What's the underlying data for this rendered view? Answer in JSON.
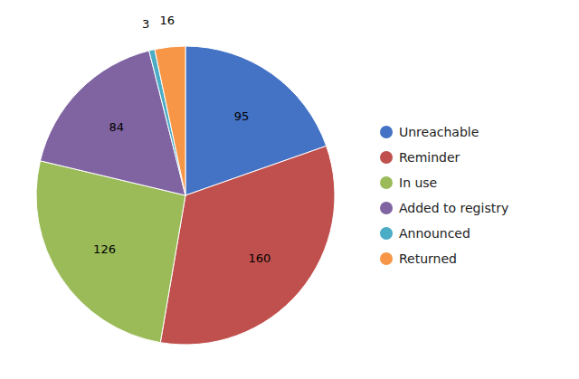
{
  "chart_data": {
    "type": "pie",
    "categories": [
      "Unreachable",
      "Reminder",
      "In use",
      "Added to registry",
      "Announced",
      "Returned"
    ],
    "values": [
      95,
      160,
      126,
      84,
      3,
      16
    ],
    "colors": [
      "#4472C4",
      "#C0504D",
      "#9BBB59",
      "#8064A2",
      "#4BACC6",
      "#F79646"
    ],
    "data_labels": true,
    "legend": "right"
  }
}
